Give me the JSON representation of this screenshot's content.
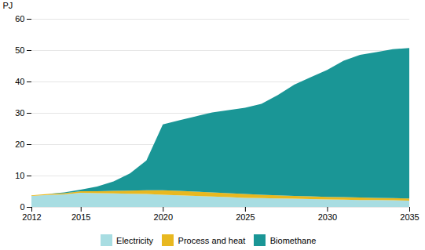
{
  "chart_data": {
    "type": "area",
    "stacked": true,
    "x": [
      2012,
      2013,
      2014,
      2015,
      2016,
      2017,
      2018,
      2019,
      2020,
      2021,
      2022,
      2023,
      2024,
      2025,
      2026,
      2027,
      2028,
      2029,
      2030,
      2031,
      2032,
      2033,
      2034,
      2035
    ],
    "series": [
      {
        "name": "Electricity",
        "color": "#a8dde2",
        "values": [
          3.5,
          3.8,
          4.0,
          4.5,
          4.4,
          4.3,
          4.2,
          4.1,
          3.9,
          3.7,
          3.5,
          3.3,
          3.1,
          2.9,
          2.8,
          2.7,
          2.6,
          2.5,
          2.4,
          2.3,
          2.2,
          2.2,
          2.1,
          2.0
        ]
      },
      {
        "name": "Process and heat",
        "color": "#e8b820",
        "values": [
          0.2,
          0.3,
          0.4,
          0.5,
          0.6,
          0.8,
          1.0,
          1.2,
          1.4,
          1.4,
          1.4,
          1.3,
          1.3,
          1.2,
          1.1,
          1.0,
          0.9,
          0.9,
          0.8,
          0.8,
          0.8,
          0.7,
          0.7,
          0.7
        ]
      },
      {
        "name": "Biomethane",
        "color": "#1a9696",
        "values": [
          0.0,
          0.0,
          0.2,
          0.5,
          1.5,
          3.0,
          5.5,
          9.5,
          21.0,
          22.5,
          24.0,
          25.5,
          26.5,
          27.5,
          29.0,
          32.0,
          35.5,
          38.0,
          40.5,
          43.5,
          45.5,
          46.5,
          47.5,
          48.0
        ]
      }
    ],
    "ylabel": "PJ",
    "xlim": [
      2012,
      2035
    ],
    "ylim": [
      0,
      60
    ],
    "xticks": [
      2012,
      2015,
      2020,
      2025,
      2030,
      2035
    ],
    "yticks": [
      0,
      10,
      20,
      30,
      40,
      50,
      60
    ],
    "grid": true,
    "legend": "bottom"
  }
}
